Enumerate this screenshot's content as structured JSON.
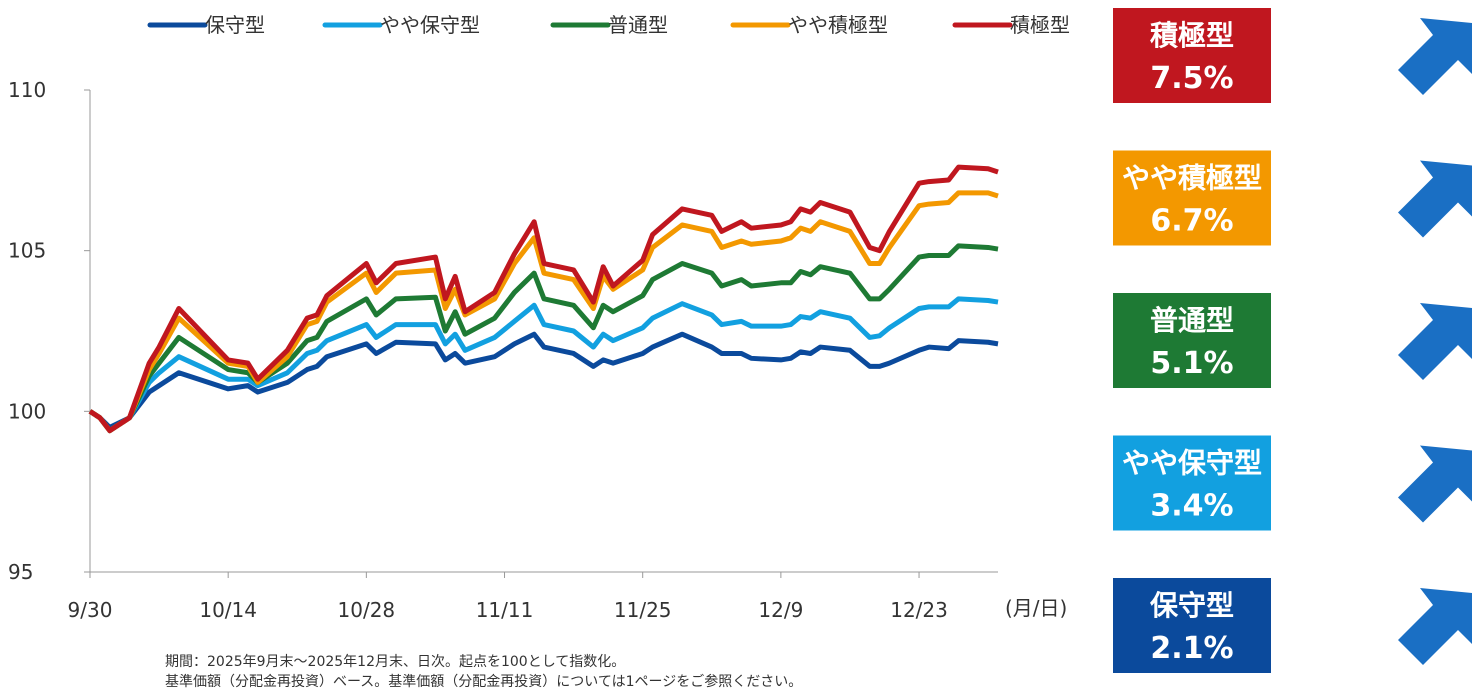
{
  "chart_data": {
    "type": "line",
    "legend_position": "top",
    "xlabel": "(月/日)",
    "x": [
      0,
      1,
      2,
      4,
      6,
      7,
      9,
      14,
      16,
      17,
      20,
      22,
      23,
      24,
      28,
      29,
      31,
      35,
      36,
      37,
      38,
      41,
      43,
      45,
      46,
      49,
      51,
      52,
      53,
      56,
      57,
      60,
      63,
      64,
      66,
      67,
      70,
      71,
      72,
      73,
      74,
      77,
      79,
      80,
      81,
      84,
      85,
      87,
      88,
      91,
      92
    ],
    "xlim": [
      0,
      92
    ],
    "xticks": [
      {
        "value": 0,
        "label": "9/30"
      },
      {
        "value": 14,
        "label": "10/14"
      },
      {
        "value": 28,
        "label": "10/28"
      },
      {
        "value": 42,
        "label": "11/11"
      },
      {
        "value": 56,
        "label": "11/25"
      },
      {
        "value": 70,
        "label": "12/9"
      },
      {
        "value": 84,
        "label": "12/23"
      }
    ],
    "ylim": [
      95,
      110
    ],
    "yticks": [
      95,
      100,
      105,
      110
    ],
    "series": [
      {
        "name": "保守型",
        "color": "#0b4a9c",
        "values": [
          100,
          99.8,
          99.5,
          99.8,
          100.6,
          100.8,
          101.2,
          100.7,
          100.8,
          100.6,
          100.9,
          101.3,
          101.4,
          101.7,
          102.1,
          101.8,
          102.15,
          102.1,
          101.6,
          101.8,
          101.5,
          101.7,
          102.1,
          102.4,
          102.0,
          101.8,
          101.4,
          101.6,
          101.5,
          101.8,
          102.0,
          102.4,
          102.0,
          101.8,
          101.8,
          101.65,
          101.6,
          101.65,
          101.85,
          101.8,
          102.0,
          101.9,
          101.4,
          101.4,
          101.5,
          101.9,
          102.0,
          101.95,
          102.2,
          102.15,
          102.1
        ]
      },
      {
        "name": "やや保守型",
        "color": "#12a0e0",
        "values": [
          100,
          99.8,
          99.4,
          99.8,
          100.9,
          101.2,
          101.7,
          101.0,
          101.0,
          100.8,
          101.2,
          101.8,
          101.9,
          102.2,
          102.7,
          102.3,
          102.7,
          102.7,
          102.1,
          102.4,
          101.9,
          102.3,
          102.8,
          103.3,
          102.7,
          102.5,
          102.0,
          102.4,
          102.2,
          102.6,
          102.9,
          103.35,
          103.0,
          102.7,
          102.8,
          102.65,
          102.65,
          102.7,
          102.95,
          102.9,
          103.1,
          102.9,
          102.3,
          102.35,
          102.6,
          103.2,
          103.25,
          103.25,
          103.5,
          103.45,
          103.4
        ]
      },
      {
        "name": "普通型",
        "color": "#1e7a34",
        "values": [
          100,
          99.8,
          99.4,
          99.8,
          101.1,
          101.5,
          102.3,
          101.3,
          101.2,
          100.9,
          101.5,
          102.2,
          102.3,
          102.8,
          103.5,
          103.0,
          103.5,
          103.55,
          102.5,
          103.1,
          102.4,
          102.9,
          103.7,
          104.3,
          103.5,
          103.3,
          102.6,
          103.3,
          103.1,
          103.6,
          104.1,
          104.6,
          104.3,
          103.9,
          104.1,
          103.9,
          104.0,
          104.0,
          104.35,
          104.25,
          104.5,
          104.3,
          103.5,
          103.5,
          103.8,
          104.8,
          104.85,
          104.85,
          105.15,
          105.1,
          105.05
        ]
      },
      {
        "name": "やや積極型",
        "color": "#f39800",
        "values": [
          100,
          99.8,
          99.4,
          99.8,
          101.3,
          101.8,
          102.9,
          101.5,
          101.4,
          100.9,
          101.7,
          102.7,
          102.8,
          103.4,
          104.3,
          103.7,
          104.3,
          104.4,
          103.2,
          103.8,
          103.0,
          103.5,
          104.6,
          105.4,
          104.3,
          104.1,
          103.2,
          104.2,
          103.8,
          104.4,
          105.1,
          105.8,
          105.6,
          105.1,
          105.3,
          105.2,
          105.3,
          105.4,
          105.7,
          105.6,
          105.9,
          105.6,
          104.6,
          104.6,
          105.1,
          106.4,
          106.45,
          106.5,
          106.8,
          106.8,
          106.7
        ]
      },
      {
        "name": "積極型",
        "color": "#c0171f",
        "values": [
          100,
          99.8,
          99.4,
          99.8,
          101.5,
          102.0,
          103.2,
          101.6,
          101.5,
          101.0,
          101.9,
          102.9,
          103.0,
          103.6,
          104.6,
          104.0,
          104.6,
          104.8,
          103.5,
          104.2,
          103.1,
          103.7,
          104.9,
          105.9,
          104.6,
          104.4,
          103.4,
          104.5,
          103.9,
          104.7,
          105.5,
          106.3,
          106.1,
          105.6,
          105.9,
          105.7,
          105.8,
          105.9,
          106.3,
          106.2,
          106.5,
          106.2,
          105.1,
          105.0,
          105.6,
          107.1,
          107.15,
          107.2,
          107.6,
          107.55,
          107.45
        ]
      }
    ]
  },
  "notes": [
    "期間：2025年9月末～2025年12月末、日次。起点を100として指数化。",
    "基準価額（分配金再投資）ベース。基準価額（分配金再投資）については1ページをご参照ください。"
  ],
  "summary": [
    {
      "label": "積極型",
      "value": "7.5%",
      "color": "#c0171f"
    },
    {
      "label": "やや積極型",
      "value": "6.7%",
      "color": "#f39800"
    },
    {
      "label": "普通型",
      "value": "5.1%",
      "color": "#1e7a34"
    },
    {
      "label": "やや保守型",
      "value": "3.4%",
      "color": "#12a0e0"
    },
    {
      "label": "保守型",
      "value": "2.1%",
      "color": "#0b4a9c"
    }
  ]
}
